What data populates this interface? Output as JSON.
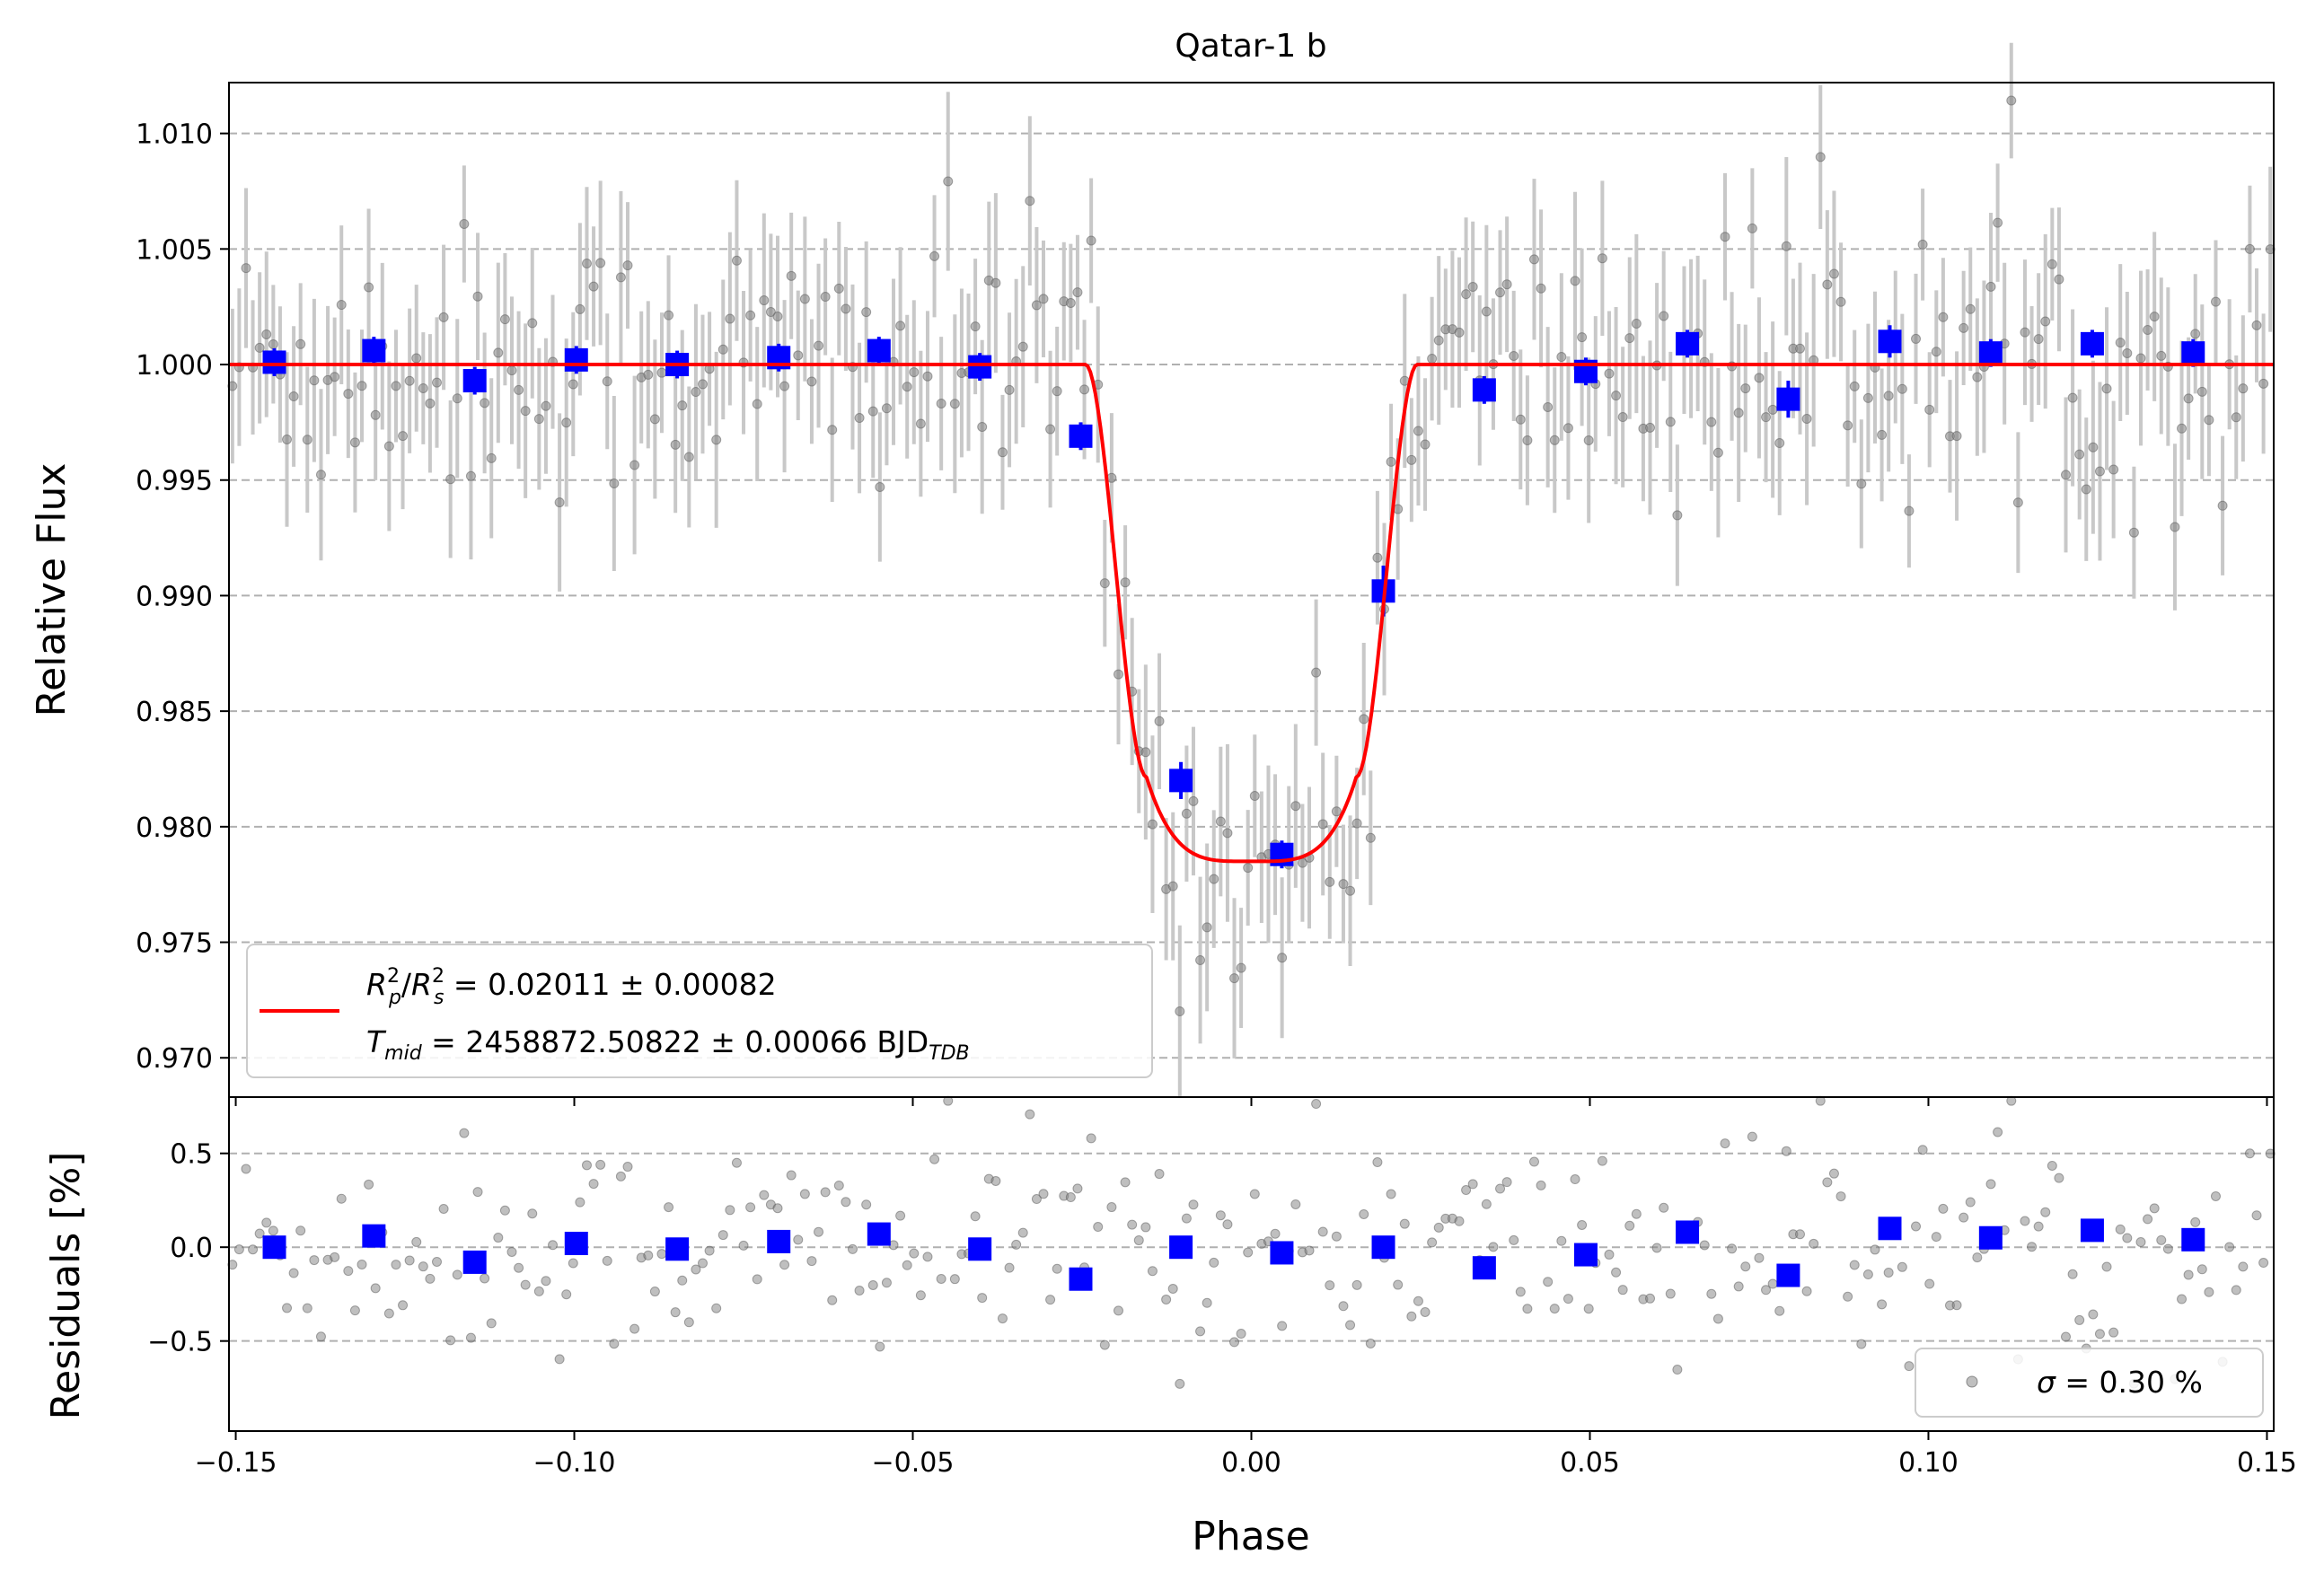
{
  "chart_data": {
    "type": "scatter",
    "title": "Qatar-1 b",
    "xlabel": "Phase",
    "xlim": [
      -0.151,
      0.151
    ],
    "x_ticks": [
      -0.15,
      -0.1,
      -0.05,
      0.0,
      0.05,
      0.1,
      0.15
    ],
    "x_tick_labels": [
      "−0.15",
      "−0.10",
      "−0.05",
      "0.00",
      "0.05",
      "0.10",
      "0.15"
    ],
    "grid": "horizontal dashed",
    "top_panel": {
      "ylabel": "Relative Flux",
      "ylim": [
        0.9683,
        1.0122
      ],
      "y_ticks": [
        0.97,
        0.975,
        0.98,
        0.985,
        0.99,
        0.995,
        1.0,
        1.005,
        1.01
      ],
      "y_tick_labels": [
        "0.970",
        "0.975",
        "0.980",
        "0.985",
        "0.990",
        "0.995",
        "1.000",
        "1.005",
        "1.010"
      ],
      "legend_placement": "lower-left",
      "legend": {
        "line1": {
          "a": "R",
          "a_sup": "2",
          "a_sub": "p",
          "slash": "/",
          "b": "R",
          "b_sup": "2",
          "b_sub": "s",
          "rest": " = 0.02011 ± 0.00082"
        },
        "line2": {
          "t": "T",
          "t_sub": "mid",
          "rest": " = 2458872.50822 ± 0.00066 BJD",
          "bjd_sub": "TDB"
        }
      },
      "model_series": {
        "name": "transit model",
        "color": "#ff0000",
        "transit_center": 0.0,
        "first_contact": -0.0245,
        "second_contact": -0.0155,
        "third_contact": 0.0155,
        "fourth_contact": 0.0245,
        "baseline": 1.0,
        "depth_min": 0.9785
      },
      "binned_series": {
        "color": "#0000ff",
        "x": [
          -0.1443,
          -0.1296,
          -0.1147,
          -0.0997,
          -0.0848,
          -0.0698,
          -0.055,
          -0.0401,
          -0.0252,
          -0.0104,
          0.0045,
          0.0195,
          0.0344,
          0.0494,
          0.0644,
          0.0793,
          0.0943,
          0.1092,
          0.1242,
          0.1391
        ],
        "y": [
          1.0001,
          1.0006,
          0.9993,
          1.0002,
          1.0,
          1.0003,
          1.0006,
          0.9999,
          0.9969,
          0.982,
          0.9788,
          0.9902,
          0.9989,
          0.9997,
          1.0009,
          0.9985,
          1.001,
          1.0005,
          1.0009,
          1.0005
        ],
        "yerr": [
          0.0006,
          0.0006,
          0.0006,
          0.0006,
          0.0006,
          0.0006,
          0.0006,
          0.0006,
          0.0006,
          0.0008,
          0.0006,
          0.0011,
          0.0006,
          0.0006,
          0.0006,
          0.0008,
          0.0007,
          0.0006,
          0.0006,
          0.0006
        ]
      },
      "raw_series": {
        "color": "#808080",
        "count": 300,
        "typical_yerr": 0.003,
        "scatter_sigma": 0.003,
        "note_x_range": [
          -0.151,
          0.151
        ]
      }
    },
    "bottom_panel": {
      "ylabel": "Residuals [%]",
      "ylim": [
        -0.98,
        0.8
      ],
      "y_ticks": [
        -0.5,
        0.0,
        0.5
      ],
      "y_tick_labels": [
        "−0.5",
        "0.0",
        "0.5"
      ],
      "legend_placement": "lower-right",
      "legend": {
        "sigma": "σ",
        "rest": " = 0.30 %"
      },
      "binned_residuals": {
        "x": [
          -0.1443,
          -0.1296,
          -0.1147,
          -0.0997,
          -0.0848,
          -0.0698,
          -0.055,
          -0.0401,
          -0.0252,
          -0.0104,
          0.0045,
          0.0195,
          0.0344,
          0.0494,
          0.0644,
          0.0793,
          0.0943,
          0.1092,
          0.1242,
          0.1391
        ],
        "y": [
          0.0,
          0.06,
          -0.08,
          0.02,
          -0.01,
          0.03,
          0.07,
          -0.01,
          -0.17,
          0.0,
          -0.03,
          0.0,
          -0.11,
          -0.04,
          0.08,
          -0.15,
          0.1,
          0.05,
          0.09,
          0.04
        ]
      },
      "raw_residuals": {
        "color": "#808080",
        "count": 300,
        "sigma_percent": 0.3
      }
    }
  }
}
